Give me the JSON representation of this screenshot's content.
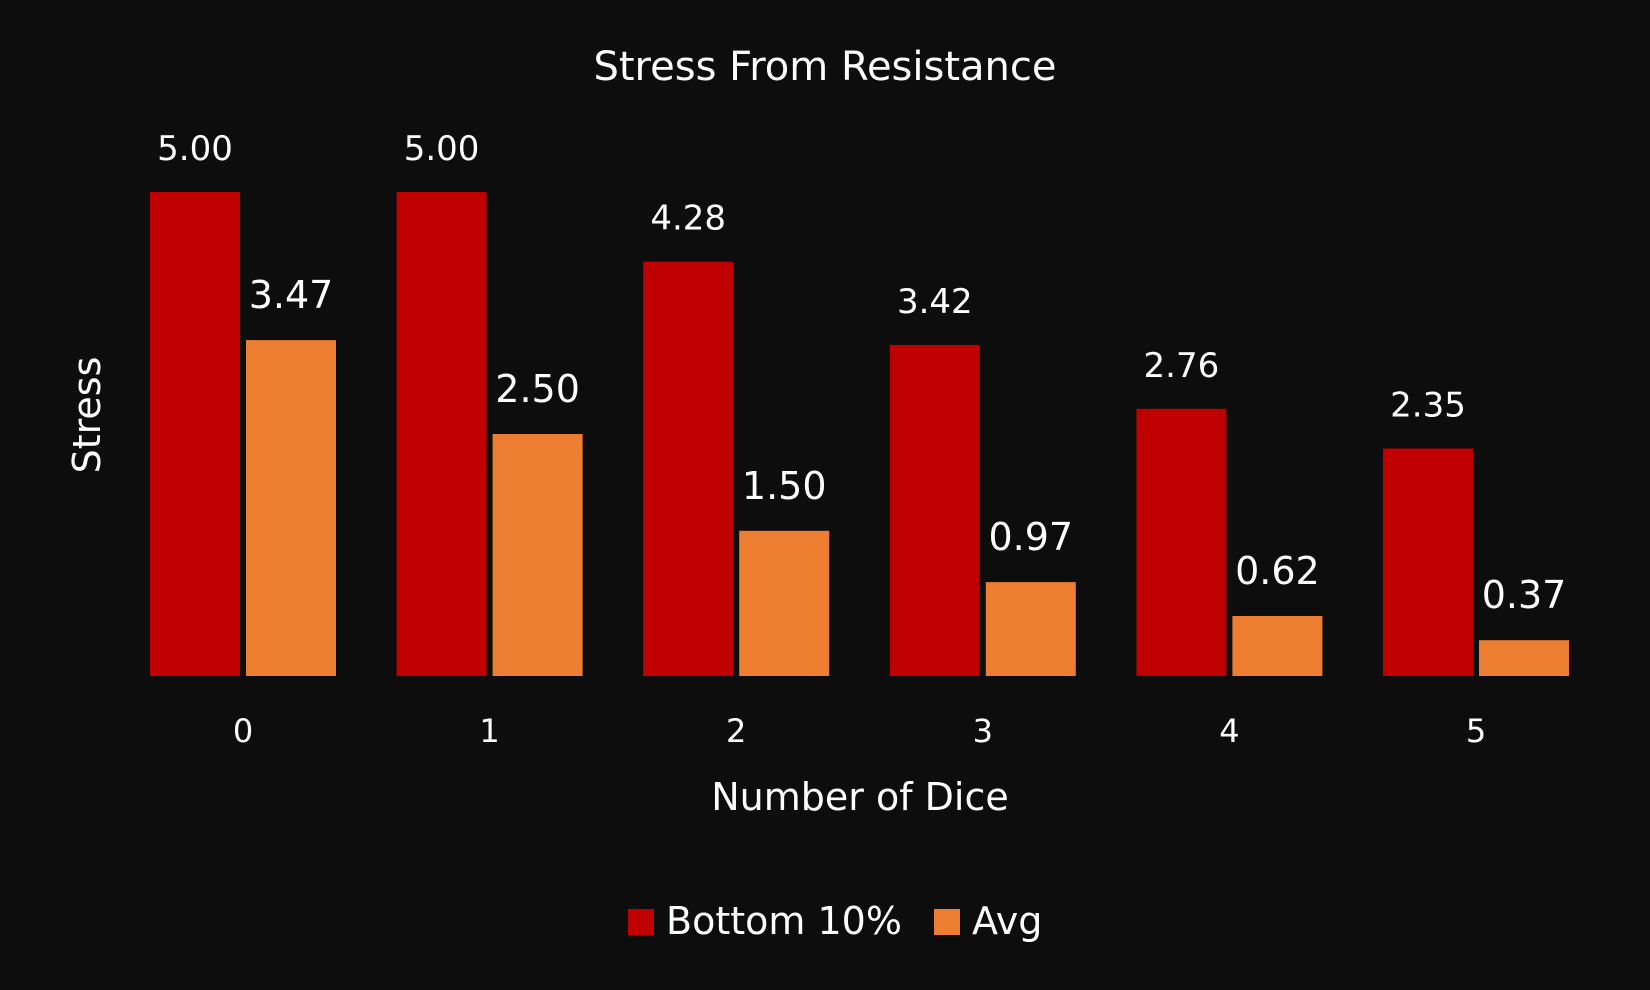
{
  "chart_data": {
    "type": "bar",
    "title": "Stress From Resistance",
    "xlabel": "Number of Dice",
    "ylabel": "Stress",
    "categories": [
      "0",
      "1",
      "2",
      "3",
      "4",
      "5"
    ],
    "ylim": [
      0,
      5.5
    ],
    "grid": false,
    "legend_position": "bottom",
    "series": [
      {
        "name": "Bottom 10%",
        "color": "#c00000",
        "values": [
          5.0,
          5.0,
          4.28,
          3.42,
          2.76,
          2.35
        ],
        "labels": [
          "5.00",
          "5.00",
          "4.28",
          "3.42",
          "2.76",
          "2.35"
        ]
      },
      {
        "name": "Avg",
        "color": "#ed7d31",
        "values": [
          3.47,
          2.5,
          1.5,
          0.97,
          0.62,
          0.37
        ],
        "labels": [
          "3.47",
          "2.50",
          "1.50",
          "0.97",
          "0.62",
          "0.37"
        ]
      }
    ]
  }
}
